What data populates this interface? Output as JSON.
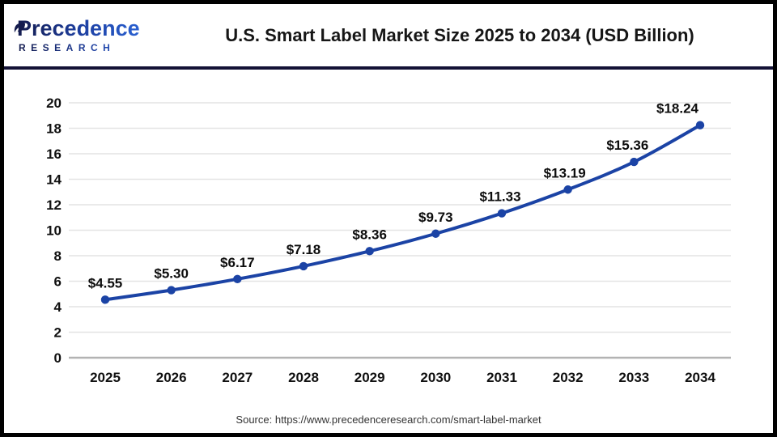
{
  "header": {
    "logo_line1": "Precedence",
    "logo_line2": "RESEARCH",
    "title": "U.S. Smart Label Market Size 2025 to 2034 (USD Billion)"
  },
  "source_text": "Source: https://www.precedenceresearch.com/smart-label-market",
  "colors": {
    "line": "#1b43a5",
    "marker": "#1b43a5",
    "gridline": "#e4e4e4",
    "axis_line": "#b3b3b3",
    "tick_label": "#111111",
    "data_label": "#0d0d0d",
    "divider": "#131236",
    "border": "#000000",
    "logo_navy": "#141b4d",
    "logo_blue": "#2e6be0"
  },
  "chart_data": {
    "type": "line",
    "title": "U.S. Smart Label Market Size 2025 to 2034 (USD Billion)",
    "categories": [
      "2025",
      "2026",
      "2027",
      "2028",
      "2029",
      "2030",
      "2031",
      "2032",
      "2033",
      "2034"
    ],
    "series": [
      {
        "name": "U.S. Smart Label Market Size (USD Billion)",
        "values": [
          4.55,
          5.3,
          6.17,
          7.18,
          8.36,
          9.73,
          11.33,
          13.19,
          15.36,
          18.24
        ]
      }
    ],
    "data_labels": [
      "$4.55",
      "$5.30",
      "$6.17",
      "$7.18",
      "$8.36",
      "$9.73",
      "$11.33",
      "$13.19",
      "$15.36",
      "$18.24"
    ],
    "xlabel": "",
    "ylabel": "",
    "ylim": [
      0,
      20
    ],
    "yticks": [
      0,
      2,
      4,
      6,
      8,
      10,
      12,
      14,
      16,
      18,
      20
    ],
    "grid": true,
    "legend": false
  }
}
